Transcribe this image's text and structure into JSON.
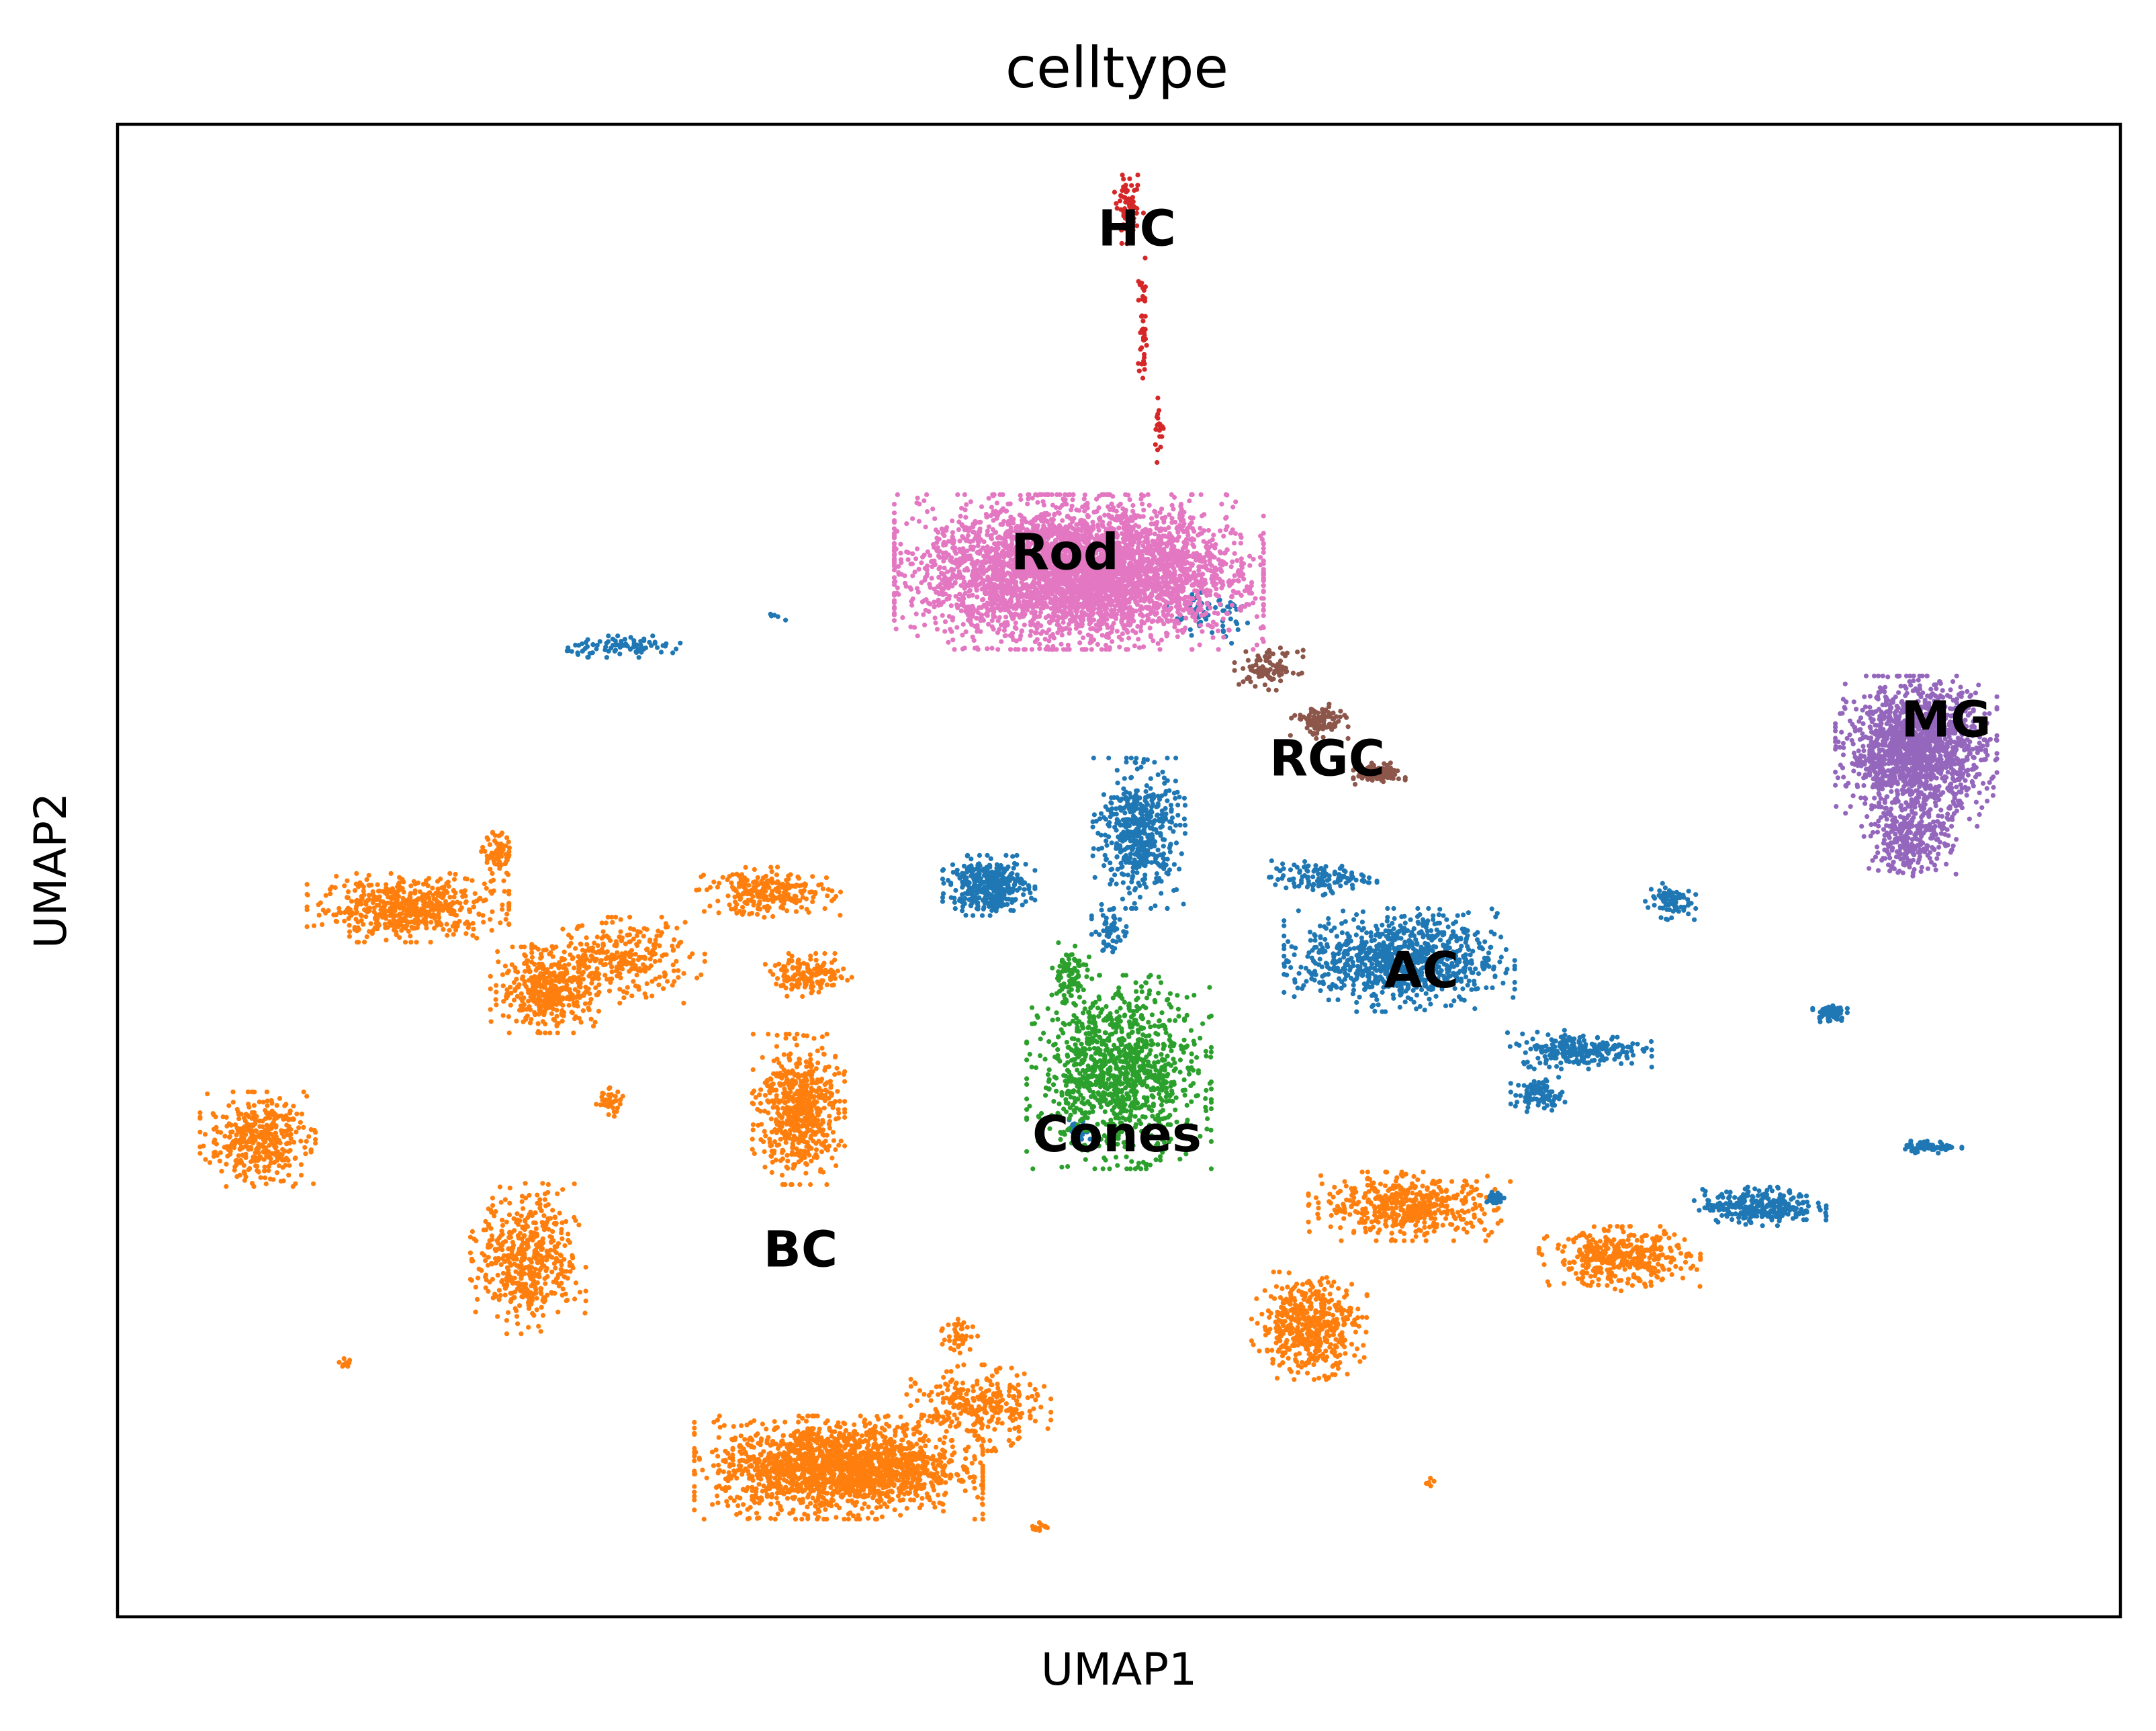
{
  "chart_data": {
    "type": "scatter",
    "title": "celltype",
    "xlabel": "UMAP1",
    "ylabel": "UMAP2",
    "xlim": [
      0,
      100
    ],
    "ylim": [
      0,
      100
    ],
    "xticks": [],
    "yticks": [],
    "grid": false,
    "legend": "on data",
    "series": [
      {
        "name": "HC",
        "color": "#d62728",
        "label_at": [
          50.9,
          92.8
        ],
        "clusters": [
          {
            "center": [
              50.5,
              94.3
            ],
            "spread": [
              0.5,
              1.6
            ],
            "n": 70
          },
          {
            "center": [
              51.2,
              86.0
            ],
            "spread": [
              0.2,
              3.5
            ],
            "n": 40
          },
          {
            "center": [
              52.0,
              79.5
            ],
            "spread": [
              0.2,
              1.5
            ],
            "n": 20
          }
        ]
      },
      {
        "name": "Rod",
        "color": "#e377c2",
        "label_at": [
          47.3,
          71.1
        ],
        "clusters": [
          {
            "center": [
              48.0,
              70.0
            ],
            "spread": [
              6.4,
              3.6
            ],
            "n": 4200
          }
        ]
      },
      {
        "name": "MG",
        "color": "#9467bd",
        "label_at": [
          91.3,
          59.9
        ],
        "clusters": [
          {
            "center": [
              89.8,
              58.0
            ],
            "spread": [
              2.8,
              3.5
            ],
            "n": 1500
          },
          {
            "center": [
              89.5,
              52.0
            ],
            "spread": [
              1.6,
              1.8
            ],
            "n": 260
          }
        ]
      },
      {
        "name": "RGC",
        "color": "#8c564b",
        "label_at": [
          60.4,
          57.3
        ],
        "clusters": [
          {
            "center": [
              57.5,
              63.5
            ],
            "spread": [
              1.2,
              1.0
            ],
            "n": 90
          },
          {
            "center": [
              60.0,
              60.0
            ],
            "spread": [
              1.0,
              0.8
            ],
            "n": 110
          },
          {
            "center": [
              63.0,
              56.5
            ],
            "spread": [
              0.9,
              0.5
            ],
            "n": 110
          }
        ]
      },
      {
        "name": "AC",
        "color": "#1f77b4",
        "label_at": [
          65.1,
          43.1
        ],
        "clusters": [
          {
            "center": [
              43.5,
              49.0
            ],
            "spread": [
              1.6,
              1.4
            ],
            "n": 400
          },
          {
            "center": [
              51.0,
              52.5
            ],
            "spread": [
              1.6,
              3.5
            ],
            "n": 500
          },
          {
            "center": [
              49.5,
              46.0
            ],
            "spread": [
              0.6,
              1.2
            ],
            "n": 60
          },
          {
            "center": [
              64.0,
              44.0
            ],
            "spread": [
              4.0,
              2.4
            ],
            "n": 900
          },
          {
            "center": [
              73.0,
              38.0
            ],
            "spread": [
              2.5,
              0.9
            ],
            "n": 250
          },
          {
            "center": [
              71.0,
              35.0
            ],
            "spread": [
              1.0,
              0.8
            ],
            "n": 90
          },
          {
            "center": [
              60.0,
              49.5
            ],
            "spread": [
              2.0,
              0.8
            ],
            "n": 120
          },
          {
            "center": [
              77.5,
              48.0
            ],
            "spread": [
              0.9,
              0.9
            ],
            "n": 80
          },
          {
            "center": [
              82.0,
              27.5
            ],
            "spread": [
              2.3,
              0.9
            ],
            "n": 300
          },
          {
            "center": [
              85.5,
              40.5
            ],
            "spread": [
              0.6,
              0.5
            ],
            "n": 70
          },
          {
            "center": [
              90.5,
              31.5
            ],
            "spread": [
              1.1,
              0.3
            ],
            "n": 60
          },
          {
            "center": [
              48.0,
              32.5
            ],
            "spread": [
              0.4,
              0.6
            ],
            "n": 40
          },
          {
            "center": [
              68.8,
              28.0
            ],
            "spread": [
              0.3,
              0.4
            ],
            "n": 25
          },
          {
            "center": [
              25.5,
              65.0
            ],
            "spread": [
              2.5,
              0.5
            ],
            "n": 90
          },
          {
            "center": [
              33.0,
              67.0
            ],
            "spread": [
              0.4,
              0.3
            ],
            "n": 5
          },
          {
            "center": [
              54.5,
              67.0
            ],
            "spread": [
              2.0,
              1.5
            ],
            "n": 60
          }
        ]
      },
      {
        "name": "Cones",
        "color": "#2ca02c",
        "label_at": [
          49.9,
          32.1
        ],
        "clusters": [
          {
            "center": [
              50.0,
              36.5
            ],
            "spread": [
              3.2,
              4.5
            ],
            "n": 1100
          },
          {
            "center": [
              47.5,
              43.0
            ],
            "spread": [
              0.7,
              1.5
            ],
            "n": 80
          }
        ]
      },
      {
        "name": "BC",
        "color": "#ff7f0e",
        "label_at": [
          34.1,
          24.4
        ],
        "clusters": [
          {
            "center": [
              14.5,
              47.5
            ],
            "spread": [
              3.5,
              1.6
            ],
            "n": 550
          },
          {
            "center": [
              19.0,
              51.0
            ],
            "spread": [
              0.6,
              1.2
            ],
            "n": 70
          },
          {
            "center": [
              21.5,
              42.0
            ],
            "spread": [
              2.0,
              2.0
            ],
            "n": 400
          },
          {
            "center": [
              25.0,
              44.0
            ],
            "spread": [
              3.0,
              2.0
            ],
            "n": 300
          },
          {
            "center": [
              32.5,
              48.5
            ],
            "spread": [
              2.5,
              1.2
            ],
            "n": 250
          },
          {
            "center": [
              34.5,
              43.0
            ],
            "spread": [
              1.5,
              1.0
            ],
            "n": 150
          },
          {
            "center": [
              34.0,
              34.0
            ],
            "spread": [
              1.6,
              3.5
            ],
            "n": 600
          },
          {
            "center": [
              24.5,
              34.5
            ],
            "spread": [
              0.6,
              0.7
            ],
            "n": 40
          },
          {
            "center": [
              7.0,
              32.0
            ],
            "spread": [
              2.0,
              2.2
            ],
            "n": 400
          },
          {
            "center": [
              20.5,
              24.0
            ],
            "spread": [
              2.0,
              3.5
            ],
            "n": 500
          },
          {
            "center": [
              36.0,
              10.0
            ],
            "spread": [
              5.0,
              2.4
            ],
            "n": 1800
          },
          {
            "center": [
              43.0,
              14.0
            ],
            "spread": [
              2.5,
              2.0
            ],
            "n": 300
          },
          {
            "center": [
              59.5,
              19.5
            ],
            "spread": [
              2.0,
              2.5
            ],
            "n": 500
          },
          {
            "center": [
              64.5,
              27.5
            ],
            "spread": [
              3.5,
              1.6
            ],
            "n": 500
          },
          {
            "center": [
              75.0,
              24.0
            ],
            "spread": [
              2.8,
              1.5
            ],
            "n": 400
          },
          {
            "center": [
              42.0,
              19.0
            ],
            "spread": [
              0.7,
              1.0
            ],
            "n": 40
          },
          {
            "center": [
              11.5,
              17.0
            ],
            "spread": [
              0.3,
              0.3
            ],
            "n": 10
          },
          {
            "center": [
              46.0,
              6.0
            ],
            "spread": [
              0.4,
              0.3
            ],
            "n": 15
          },
          {
            "center": [
              65.5,
              9.0
            ],
            "spread": [
              0.2,
              0.2
            ],
            "n": 6
          }
        ]
      }
    ]
  }
}
